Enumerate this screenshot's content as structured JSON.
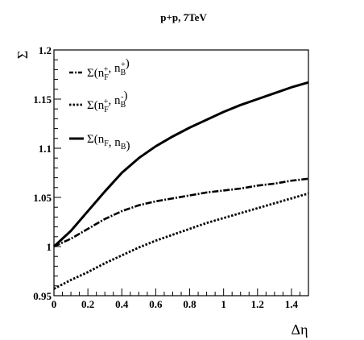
{
  "chart_data": {
    "type": "line",
    "title": "p+p, 7TeV",
    "xlabel": "Δη",
    "ylabel": "Σ",
    "xlim": [
      0,
      1.5
    ],
    "ylim": [
      0.95,
      1.2
    ],
    "grid": false,
    "legend_position": "top-left",
    "x_ticks": [
      0,
      0.2,
      0.4,
      0.6,
      0.8,
      1,
      1.2,
      1.4
    ],
    "x_tick_labels": [
      "0",
      "0.2",
      "0.4",
      "0.6",
      "0.8",
      "1",
      "1.2",
      "1.4"
    ],
    "y_ticks": [
      0.95,
      1,
      1.05,
      1.1,
      1.15,
      1.2
    ],
    "y_tick_labels": [
      "0.95",
      "1",
      "1.05",
      "1.1",
      "1.15",
      "1.2"
    ],
    "x": [
      0,
      0.1,
      0.2,
      0.3,
      0.4,
      0.5,
      0.6,
      0.7,
      0.8,
      0.9,
      1.0,
      1.1,
      1.2,
      1.3,
      1.4,
      1.5
    ],
    "series": [
      {
        "name": "Σ(n_F^+, n_B^+)",
        "style": "dashdot",
        "values": [
          1.0,
          1.008,
          1.018,
          1.028,
          1.036,
          1.042,
          1.046,
          1.049,
          1.052,
          1.055,
          1.057,
          1.059,
          1.062,
          1.064,
          1.067,
          1.069
        ]
      },
      {
        "name": "Σ(n_F^+, n_B^-)",
        "style": "dotted",
        "values": [
          0.957,
          0.966,
          0.974,
          0.983,
          0.991,
          0.999,
          1.006,
          1.012,
          1.018,
          1.024,
          1.029,
          1.034,
          1.039,
          1.044,
          1.049,
          1.054
        ]
      },
      {
        "name": "Σ(n_F, n_B)",
        "style": "solid",
        "values": [
          1.0,
          1.016,
          1.036,
          1.056,
          1.075,
          1.09,
          1.102,
          1.112,
          1.121,
          1.129,
          1.137,
          1.144,
          1.15,
          1.156,
          1.162,
          1.167
        ]
      }
    ],
    "legend": [
      {
        "base": "Σ(n",
        "sub1": "F",
        "sup1": "+",
        "mid": ", n",
        "sub2": "B",
        "sup2": "+",
        "end": ")"
      },
      {
        "base": "Σ(n",
        "sub1": "F",
        "sup1": "+",
        "mid": ", n",
        "sub2": "B",
        "sup2": "-",
        "end": ")"
      },
      {
        "base": "Σ(n",
        "sub1": "F",
        "sup1": "",
        "mid": ", n",
        "sub2": "B",
        "sup2": "",
        "end": ")"
      }
    ]
  }
}
